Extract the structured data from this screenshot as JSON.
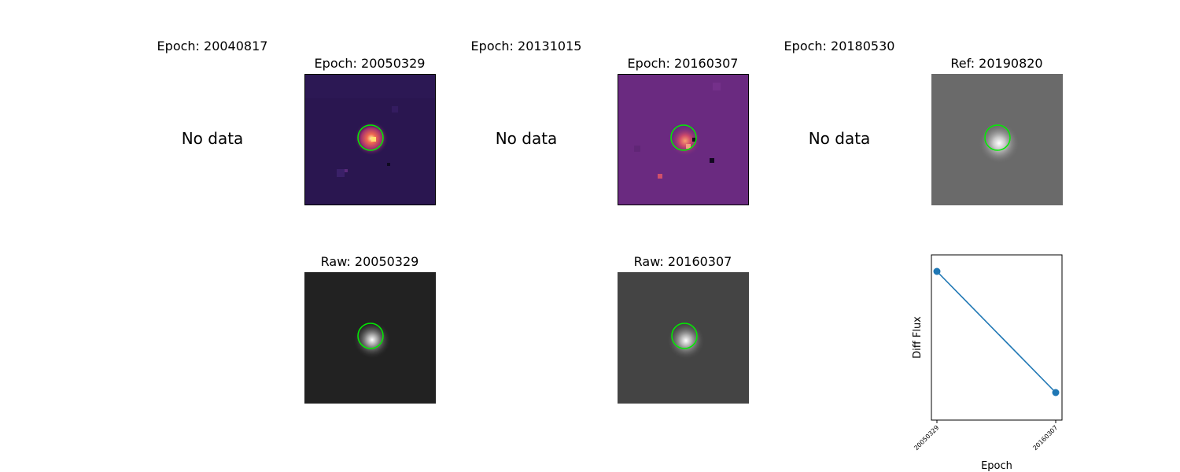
{
  "panels": {
    "top": [
      {
        "title": "Epoch: 20040817",
        "status": "No data"
      },
      {
        "title": "Epoch: 20050329"
      },
      {
        "title": "Epoch: 20131015",
        "status": "No data"
      },
      {
        "title": "Epoch: 20160307"
      },
      {
        "title": "Epoch: 20180530",
        "status": "No data"
      },
      {
        "title": "Ref: 20190820"
      }
    ],
    "bottom": [
      {
        "title": "Raw: 20050329"
      },
      {
        "title": "Raw: 20160307"
      }
    ]
  },
  "colors": {
    "aperture": "#00ee00",
    "line": "#1f77b4",
    "diff1_bg": "#2a1650",
    "diff2_bg": "#6a2a80",
    "ref_bg": "#6a6a6a",
    "raw1_bg": "#222222",
    "raw2_bg": "#444444"
  },
  "chart_data": {
    "type": "line",
    "x": [
      "20050329",
      "20160307"
    ],
    "series": [
      {
        "values": [
          1.0,
          0.0
        ]
      }
    ],
    "xlabel": "Epoch",
    "ylabel": "Diff Flux",
    "y_ticks_visible": false,
    "grid": false,
    "marker": "circle"
  }
}
